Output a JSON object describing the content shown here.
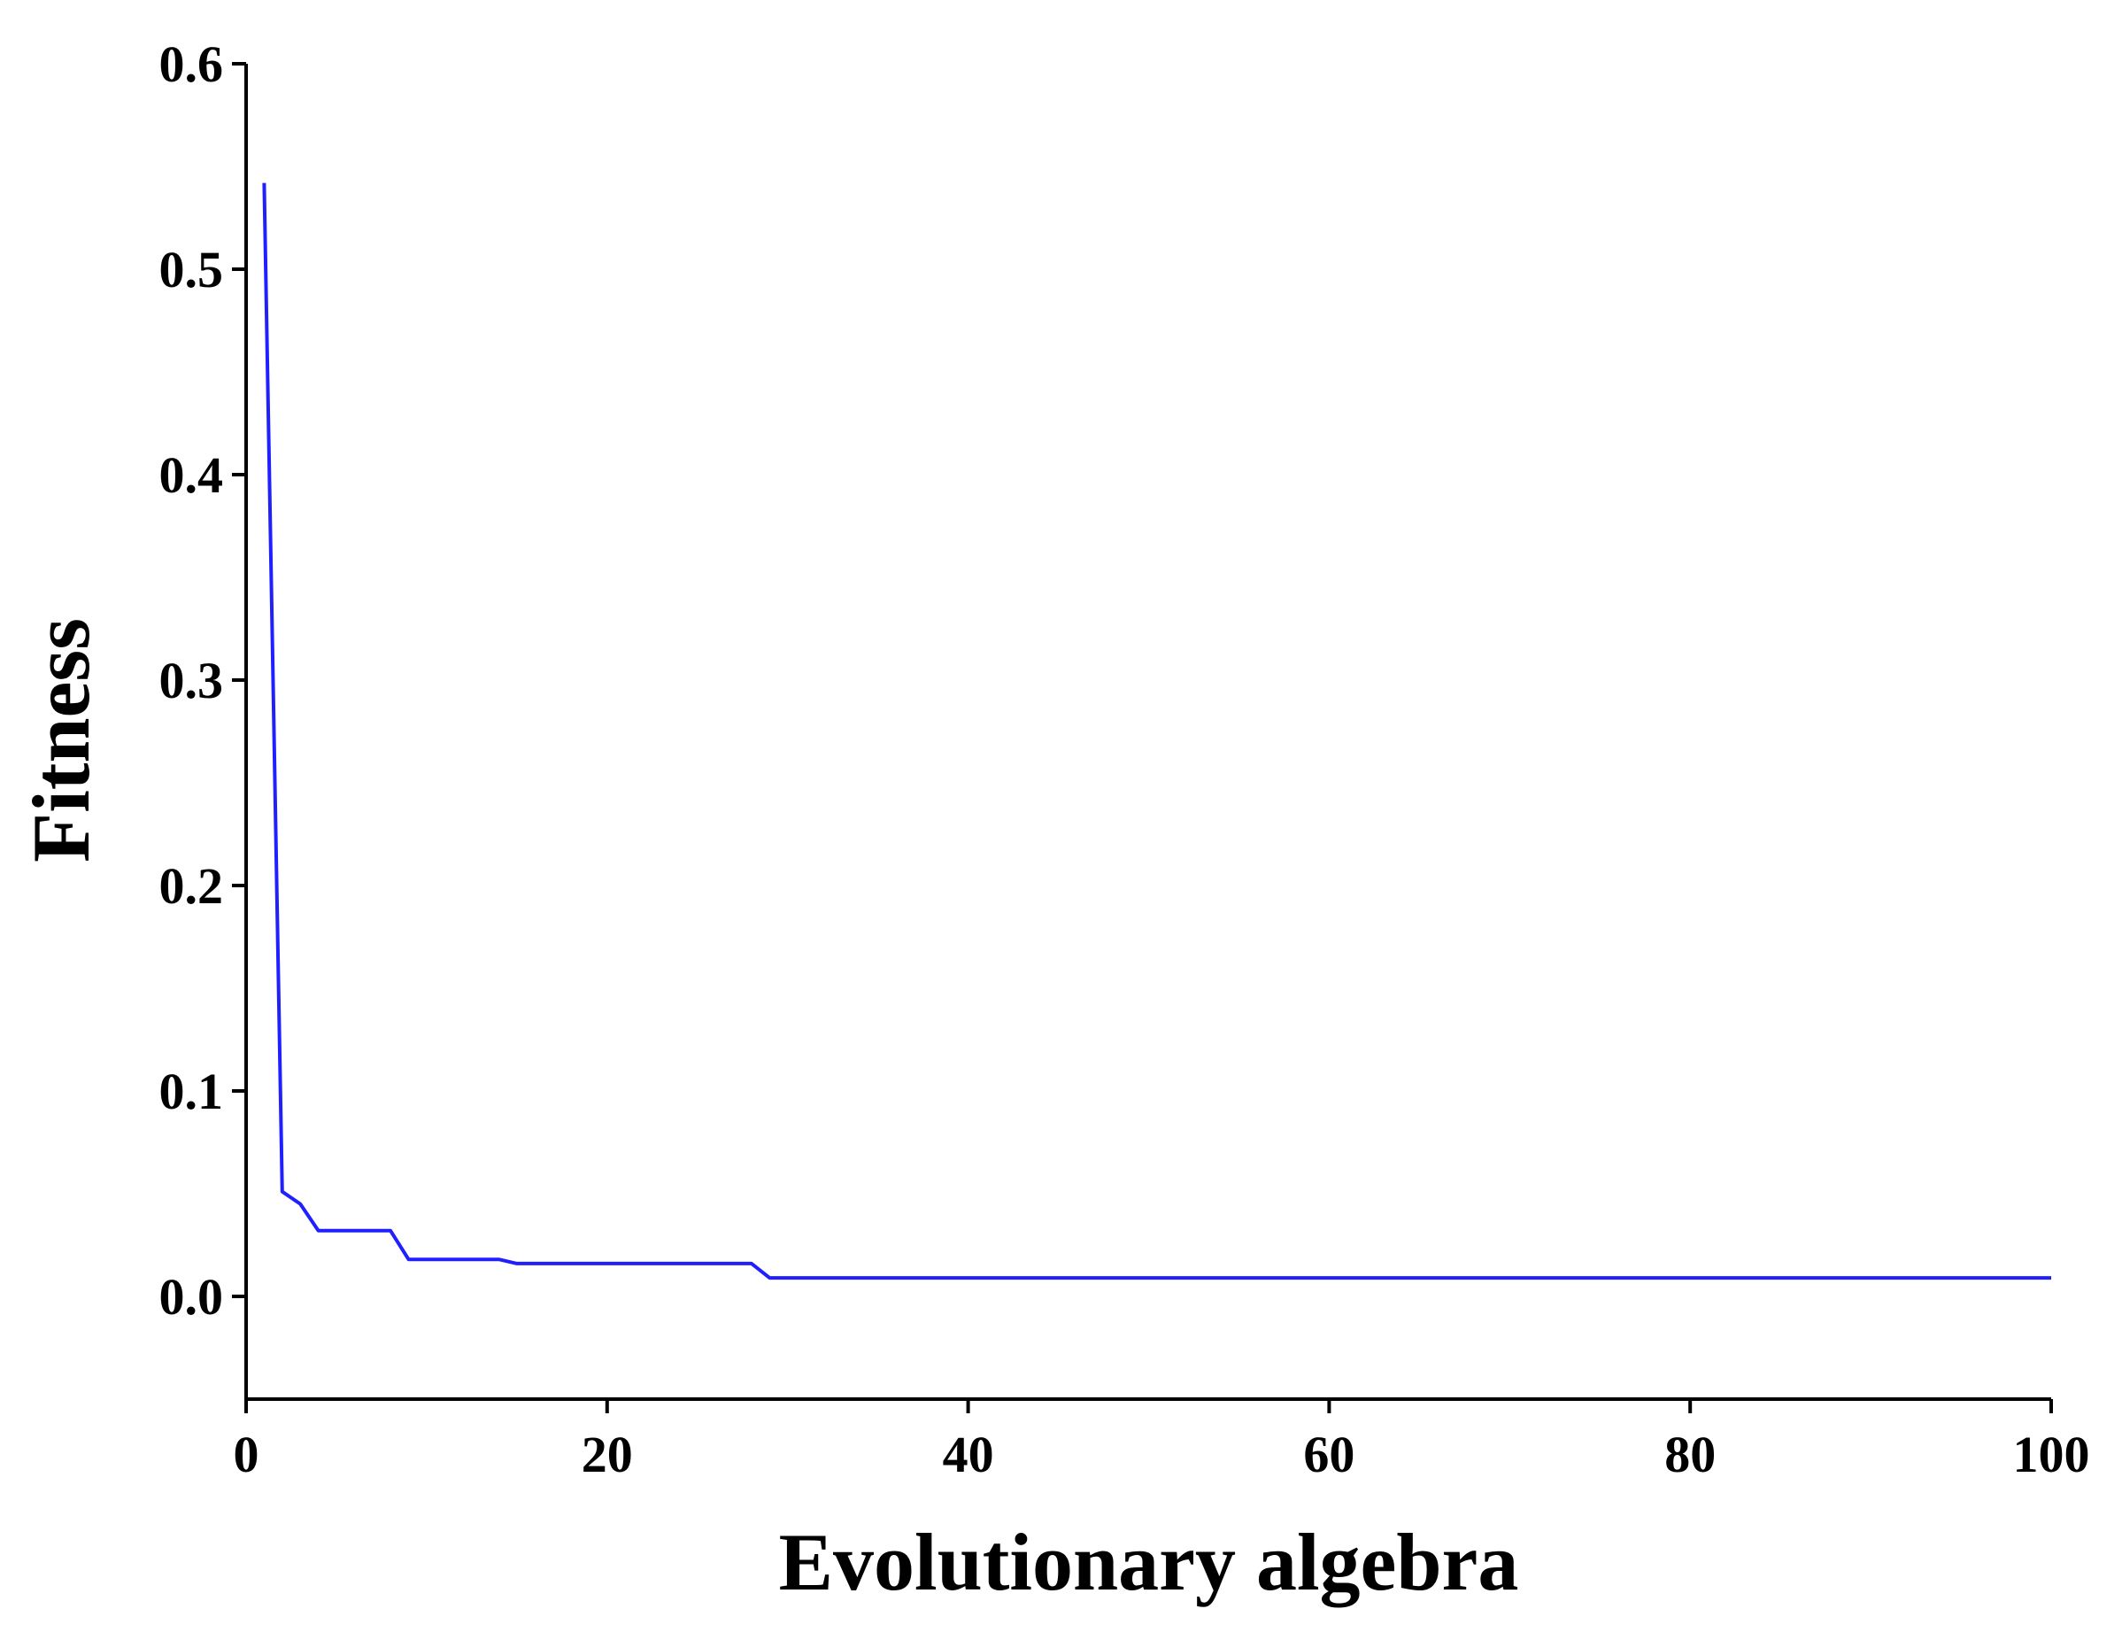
{
  "chart_data": {
    "type": "line",
    "title": "",
    "xlabel": "Evolutionary algebra",
    "ylabel": "Fitness",
    "xlim": [
      0,
      100
    ],
    "ylim": [
      -0.05,
      0.6
    ],
    "xticks": [
      0,
      20,
      40,
      60,
      80,
      100
    ],
    "xtick_labels": [
      "0",
      "20",
      "40",
      "60",
      "80",
      "100"
    ],
    "yticks": [
      0.0,
      0.1,
      0.2,
      0.3,
      0.4,
      0.5,
      0.6
    ],
    "ytick_labels": [
      "0.0",
      "0.1",
      "0.2",
      "0.3",
      "0.4",
      "0.5",
      "0.6"
    ],
    "grid": false,
    "legend": "none",
    "series": [
      {
        "color": "#2020ff",
        "x": [
          1,
          2,
          3,
          4,
          5,
          6,
          7,
          8,
          9,
          10,
          14,
          15,
          20,
          25,
          28,
          29,
          40,
          60,
          80,
          100
        ],
        "y": [
          0.542,
          0.051,
          0.045,
          0.032,
          0.032,
          0.032,
          0.032,
          0.032,
          0.018,
          0.018,
          0.018,
          0.016,
          0.016,
          0.016,
          0.016,
          0.009,
          0.009,
          0.009,
          0.009,
          0.009
        ]
      }
    ]
  }
}
